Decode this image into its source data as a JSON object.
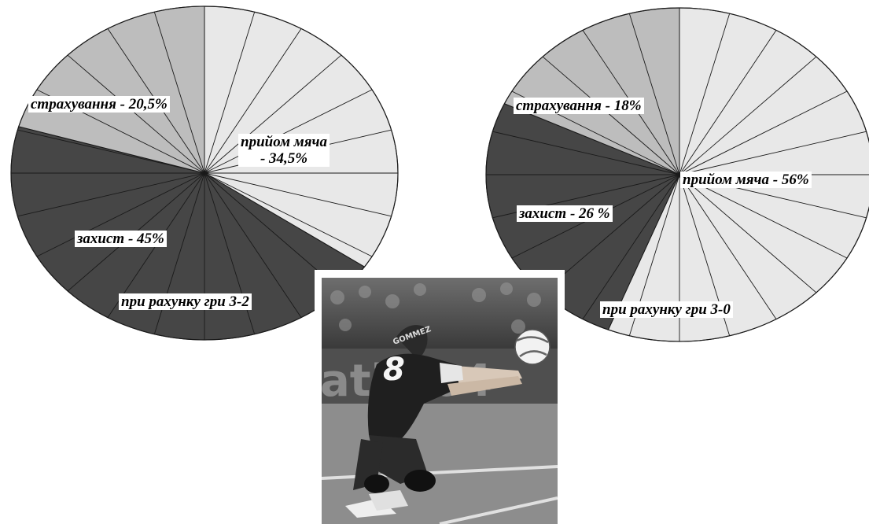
{
  "chart_data": [
    {
      "type": "pie",
      "title": "при рахунку гри 3-2",
      "series": [
        {
          "label": "прийом мяча - 34,5%",
          "value": 34.5,
          "color": "#e8e8e8"
        },
        {
          "label": "захист - 45%",
          "value": 45,
          "color": "#464646"
        },
        {
          "label": "страхування - 20,5%",
          "value": 20.5,
          "color": "#bdbdbd"
        }
      ],
      "labels": {
        "priyom_line1": "прийом мяча",
        "priyom_line2": "- 34,5%",
        "zakhyst": "захист - 45%",
        "strakhuvannia": "страхування - 20,5%",
        "score": "при рахунку гри  3-2"
      }
    },
    {
      "type": "pie",
      "title": "при рахунку гри 3-0",
      "series": [
        {
          "label": "прийом мяча - 56%",
          "value": 56,
          "color": "#e8e8e8"
        },
        {
          "label": "захист - 26 %",
          "value": 26,
          "color": "#464646"
        },
        {
          "label": "страхування - 18%",
          "value": 18,
          "color": "#bdbdbd"
        }
      ],
      "labels": {
        "priyom": "прийом мяча - 56%",
        "zakhyst": "захист -  26 %",
        "strakhuvannia": "страхування - 18%",
        "score": "при рахунку гри 3-0"
      }
    }
  ],
  "photo": {
    "jersey_number": "8",
    "jersey_name": "GOMMEZ",
    "banner_text": "atia 04"
  },
  "colors": {
    "light": "#e8e8e8",
    "mid": "#bdbdbd",
    "dark": "#464646",
    "stroke": "#1a1a1a"
  }
}
